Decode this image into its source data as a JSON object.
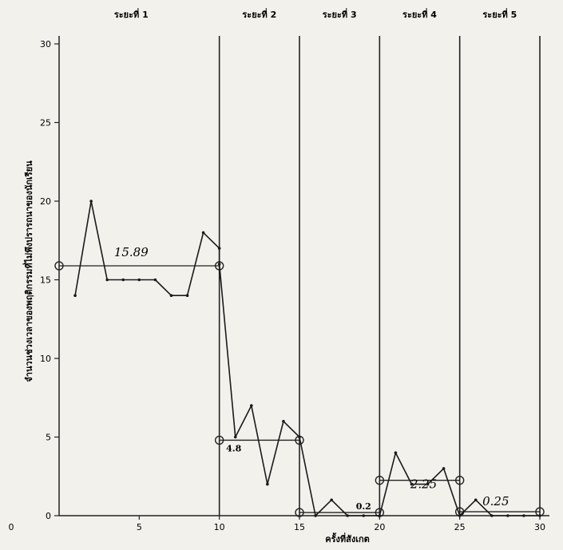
{
  "chart_data": {
    "type": "line",
    "ylabel": "จำนวนช่วงเวลาของพฤติกรรมที่ไม่พึงปรารถนาของนักเรียน",
    "xlabel": "ครั้งที่สังเกต",
    "xlim": [
      0,
      30
    ],
    "ylim": [
      0,
      30
    ],
    "x_ticks": [
      "0",
      "5",
      "10",
      "15",
      "20",
      "25",
      "30"
    ],
    "y_ticks": [
      "0",
      "5",
      "10",
      "15",
      "20",
      "25",
      "30"
    ],
    "phase_labels": [
      "ระยะที่ 1",
      "ระยะที่ 2",
      "ระยะที่ 3",
      "ระยะที่ 4",
      "ระยะที่ 5"
    ],
    "phase_boundaries": [
      10,
      15,
      20,
      25,
      30
    ],
    "series": [
      {
        "x": [
          1,
          2,
          3,
          4,
          5,
          6,
          7,
          8,
          9,
          10,
          10,
          11,
          12,
          13,
          14,
          15,
          16,
          17,
          18,
          19,
          20,
          21,
          22,
          23,
          24,
          25,
          26,
          27,
          28,
          29,
          30
        ],
        "y": [
          14,
          20,
          15,
          15,
          15,
          15,
          14,
          14,
          18,
          17,
          16,
          5,
          7,
          2,
          6,
          5,
          0,
          1,
          0,
          0,
          0,
          4,
          2,
          2,
          3,
          0,
          1,
          0,
          0,
          0,
          0
        ]
      }
    ],
    "phase_means": [
      {
        "start": 0,
        "end": 10,
        "value": 15.89,
        "label": "15.89"
      },
      {
        "start": 10,
        "end": 15,
        "value": 4.8,
        "label": "4.8"
      },
      {
        "start": 15,
        "end": 20,
        "value": 0.2,
        "label": "0.2"
      },
      {
        "start": 20,
        "end": 25,
        "value": 2.25,
        "label": "2.25"
      },
      {
        "start": 25,
        "end": 30,
        "value": 0.25,
        "label": "0.25"
      }
    ]
  }
}
